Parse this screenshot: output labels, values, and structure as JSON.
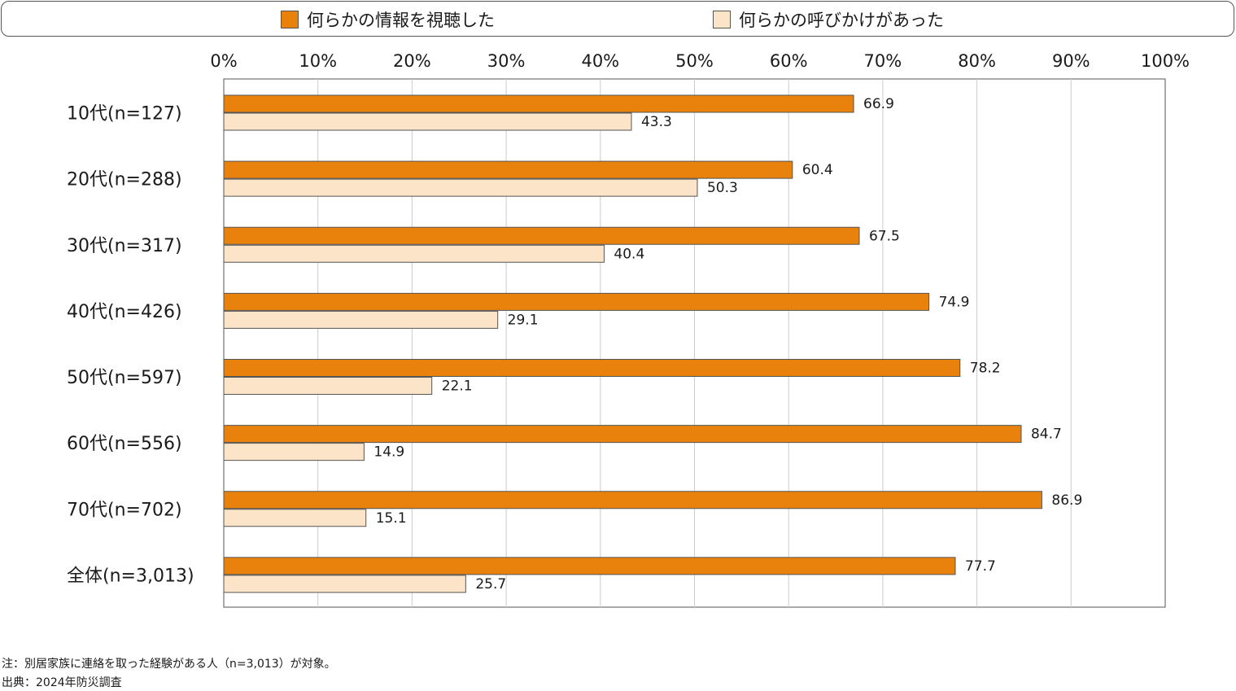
{
  "legend": [
    {
      "label": "何らかの情報を視聴した",
      "color": "#E8820C"
    },
    {
      "label": "何らかの呼びかけがあった",
      "color": "#FCE4C8"
    }
  ],
  "chart_data": {
    "type": "bar",
    "orientation": "horizontal",
    "categories": [
      "10代(n=127)",
      "20代(n=288)",
      "30代(n=317)",
      "40代(n=426)",
      "50代(n=597)",
      "60代(n=556)",
      "70代(n=702)",
      "全体(n=3,013)"
    ],
    "series": [
      {
        "name": "何らかの情報を視聴した",
        "color": "#E8820C",
        "values": [
          66.9,
          60.4,
          67.5,
          74.9,
          78.2,
          84.7,
          86.9,
          77.7
        ]
      },
      {
        "name": "何らかの呼びかけがあった",
        "color": "#FCE4C8",
        "values": [
          43.3,
          50.3,
          40.4,
          29.1,
          22.1,
          14.9,
          15.1,
          25.7
        ]
      }
    ],
    "value_labels": [
      [
        "66.9",
        "60.4",
        "67.5",
        "74.9",
        "78.2",
        "84.7",
        "86.9",
        "77.7"
      ],
      [
        "43.3",
        "50.3",
        "40.4",
        "29.1",
        "22.1",
        "14.9",
        "15.1",
        "25.7"
      ]
    ],
    "xlim": [
      0,
      100
    ],
    "xticks": [
      "0%",
      "10%",
      "20%",
      "30%",
      "40%",
      "50%",
      "60%",
      "70%",
      "80%",
      "90%",
      "100%"
    ],
    "axis_position": "top",
    "grid": true,
    "legend_position": "top"
  },
  "notes": {
    "note": "注：別居家族に連絡を取った経験がある人（n=3,013）が対象。",
    "source": "出典：2024年防災調査"
  }
}
